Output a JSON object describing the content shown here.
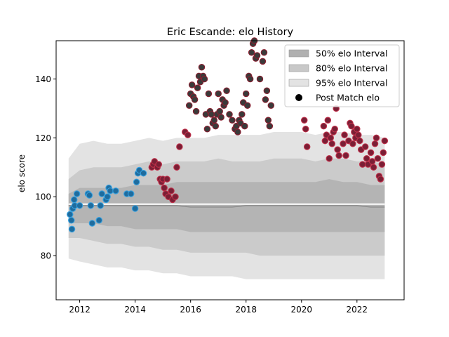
{
  "chart_data": {
    "type": "scatter",
    "title": "Eric Escande: elo History",
    "xlabel": "",
    "ylabel": "elo score",
    "xlim": [
      2011.15,
      2023.7
    ],
    "ylim": [
      65,
      153
    ],
    "x_ticks": [
      2012,
      2014,
      2016,
      2018,
      2020,
      2022
    ],
    "y_ticks": [
      80,
      100,
      120,
      140
    ],
    "grid": false,
    "legend_position": "top-right",
    "legend": [
      {
        "label": "50% elo Interval",
        "kind": "patch",
        "color": "#b0b0b0"
      },
      {
        "label": "80% elo Interval",
        "kind": "patch",
        "color": "#c8c8c8"
      },
      {
        "label": "95% elo Interval",
        "kind": "patch",
        "color": "#e3e3e3"
      },
      {
        "label": "Post Match elo",
        "kind": "marker",
        "color": "#000000"
      }
    ],
    "colors": {
      "band_50": "#b4b4b4",
      "band_80": "#cbcbcb",
      "band_95": "#e3e3e3",
      "median_line": "#8a8a8a",
      "mean_line": "#ffffff",
      "point_early_fill": "#1f6c9e",
      "point_early_edge": "#35a0e0",
      "point_late_fill": "#7a1f35",
      "point_late_edge": "#c0304a",
      "point_mid_fill": "#3a3a3a",
      "point_mid_edge": "#8a1f30"
    },
    "bands": {
      "x": [
        2011.6,
        2012.0,
        2012.5,
        2013.0,
        2013.5,
        2014.0,
        2014.5,
        2015.0,
        2015.5,
        2016.0,
        2016.5,
        2017.0,
        2017.5,
        2018.0,
        2018.5,
        2019.0,
        2020.0,
        2020.5,
        2021.0,
        2021.5,
        2022.0,
        2022.5,
        2023.0
      ],
      "p95_hi": [
        113,
        118,
        119,
        118,
        118,
        119,
        120,
        119,
        120,
        120,
        120,
        121,
        121,
        121,
        121,
        122,
        122,
        121,
        122,
        122,
        121,
        121,
        120
      ],
      "p80_hi": [
        106,
        109,
        110,
        110,
        110,
        111,
        112,
        111,
        112,
        112,
        112,
        113,
        112,
        112,
        112,
        113,
        113,
        112,
        113,
        113,
        112,
        112,
        111
      ],
      "p50_hi": [
        101,
        103,
        103,
        103,
        103,
        104,
        104,
        104,
        105,
        105,
        105,
        105,
        105,
        105,
        105,
        105,
        105,
        105,
        106,
        105,
        105,
        104,
        104
      ],
      "median": [
        97,
        97,
        97,
        97,
        97,
        97,
        97,
        97,
        97,
        96.5,
        96.5,
        96.5,
        96.5,
        97,
        97,
        97,
        97,
        97,
        97,
        97,
        97,
        96.5,
        96.5
      ],
      "mean": [
        97.5,
        97.5,
        97.5,
        97.5,
        97.5,
        97.5,
        97.5,
        97.5,
        97.5,
        97.5,
        97.5,
        97.5,
        97.5,
        97.5,
        97.5,
        97.5,
        97.5,
        97.5,
        97.5,
        97.5,
        97.5,
        97.5,
        97.5
      ],
      "p50_lo": [
        91,
        91,
        91,
        90,
        90,
        89,
        89,
        89,
        89,
        88,
        88,
        88,
        88,
        88,
        88,
        88,
        88,
        88,
        88,
        88,
        88,
        88,
        88
      ],
      "p80_lo": [
        86,
        86,
        85,
        84,
        84,
        83,
        83,
        82,
        82,
        81,
        81,
        81,
        81,
        81,
        80,
        80,
        80,
        80,
        80,
        80,
        80,
        80,
        80
      ],
      "p95_lo": [
        79,
        78,
        77,
        76,
        76,
        75,
        75,
        74,
        74,
        73,
        73,
        73,
        73,
        72,
        72,
        72,
        72,
        72,
        72,
        72,
        72,
        72,
        72
      ]
    },
    "series": [
      {
        "style": "early",
        "x": [
          2011.65,
          2011.7,
          2011.72,
          2011.75,
          2011.8,
          2011.82,
          2011.9,
          2012.0,
          2012.3,
          2012.35,
          2012.4,
          2012.45,
          2012.7,
          2012.75,
          2012.8,
          2012.95,
          2013.0,
          2013.05,
          2013.1,
          2013.3,
          2013.7,
          2013.85,
          2014.0,
          2014.05,
          2014.1,
          2014.15,
          2014.3
        ],
        "y": [
          94,
          92,
          89,
          96,
          99,
          97,
          101,
          97,
          101,
          100.5,
          97,
          91,
          92,
          97,
          101,
          99,
          100,
          103,
          102,
          102,
          101,
          101,
          96,
          105,
          108,
          109,
          108
        ]
      },
      {
        "style": "late",
        "x": [
          2014.6,
          2014.65,
          2014.7,
          2014.8,
          2014.85,
          2014.9,
          2014.95,
          2015.0,
          2015.05,
          2015.1,
          2015.15,
          2015.2,
          2015.3,
          2015.35,
          2015.45,
          2015.5,
          2015.6,
          2015.8,
          2015.9,
          2020.1,
          2020.15,
          2020.2,
          2020.8,
          2020.85,
          2020.9,
          2020.95,
          2021.0,
          2021.05,
          2021.1,
          2021.15,
          2021.2,
          2021.25,
          2021.3,
          2021.35,
          2021.5,
          2021.55,
          2021.6,
          2021.7,
          2021.75,
          2021.8,
          2021.85,
          2021.9,
          2021.95,
          2022.0,
          2022.05,
          2022.1,
          2022.15,
          2022.2,
          2022.3,
          2022.35,
          2022.4,
          2022.5,
          2022.55,
          2022.6,
          2022.65,
          2022.7,
          2022.75,
          2022.8,
          2022.85,
          2022.9,
          2022.95,
          2023.0
        ],
        "y": [
          110,
          111,
          112,
          110,
          111,
          106,
          105,
          106,
          103,
          101,
          106,
          100,
          102,
          99,
          100,
          110,
          117,
          122,
          121,
          126,
          123,
          117,
          124,
          119,
          121,
          126,
          113,
          120,
          118,
          122,
          123,
          130,
          116,
          114,
          118,
          121,
          114,
          119,
          125,
          124,
          118,
          122,
          120,
          123,
          121,
          119,
          116,
          111,
          117,
          113,
          111,
          115,
          112,
          110,
          118,
          120,
          113,
          107,
          106,
          111,
          115,
          119
        ]
      },
      {
        "style": "mid",
        "x": [
          2015.95,
          2016.0,
          2016.05,
          2016.1,
          2016.15,
          2016.2,
          2016.25,
          2016.3,
          2016.35,
          2016.4,
          2016.45,
          2016.5,
          2016.55,
          2016.6,
          2016.65,
          2016.7,
          2016.75,
          2016.8,
          2016.85,
          2016.9,
          2016.95,
          2017.0,
          2017.05,
          2017.1,
          2017.15,
          2017.2,
          2017.25,
          2017.3,
          2017.4,
          2017.5,
          2017.6,
          2017.65,
          2017.7,
          2017.75,
          2017.8,
          2017.85,
          2017.9,
          2017.95,
          2018.0,
          2018.05,
          2018.1,
          2018.15,
          2018.2,
          2018.25,
          2018.3,
          2018.35,
          2018.4,
          2018.5,
          2018.6,
          2018.65,
          2018.7,
          2018.75,
          2018.8,
          2018.85,
          2018.9
        ],
        "y": [
          131,
          135,
          138,
          134,
          133,
          129,
          137,
          141,
          139,
          144,
          141,
          140,
          128,
          123,
          135,
          129,
          128,
          125,
          126,
          124,
          128,
          135,
          129,
          127,
          133,
          131,
          132,
          136,
          128,
          126,
          123,
          124,
          122,
          126,
          125,
          128,
          132,
          124,
          135,
          131,
          141,
          140,
          149,
          152,
          153,
          147,
          148,
          140,
          146,
          149,
          133,
          136,
          126,
          124,
          131
        ]
      }
    ]
  }
}
